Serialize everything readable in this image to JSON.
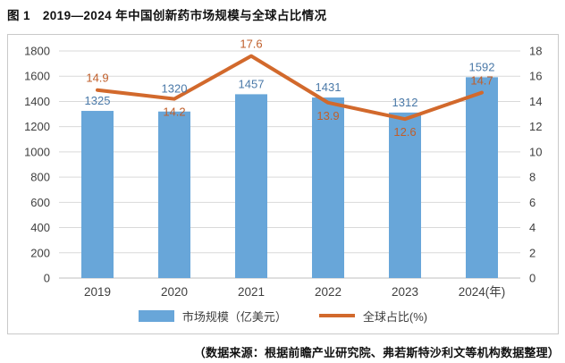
{
  "title": "图 1　2019—2024 年中国创新药市场规模与全球占比情况",
  "source_note": "（数据来源：根据前瞻产业研究院、弗若斯特沙利文等机构数据整理）",
  "legend": {
    "bar_label": "市场规模（亿美元）",
    "line_label": "全球占比(%)"
  },
  "colors": {
    "bar": "#68a6d9",
    "line": "#d2692c",
    "bar_label": "#4a79a8",
    "line_label": "#c05f2b",
    "grid": "#d9d9d9",
    "axis_line": "#bfbfbf",
    "axis_text": "#404040",
    "panel_border": "#c9c9c9"
  },
  "chart_data": {
    "type": "combo",
    "title": "2019—2024 年中国创新药市场规模与全球占比情况",
    "categories": [
      "2019",
      "2020",
      "2021",
      "2022",
      "2023",
      "2024(年)"
    ],
    "series": [
      {
        "name": "市场规模（亿美元）",
        "type": "bar",
        "values": [
          1325,
          1320,
          1457,
          1431,
          1312,
          1592
        ]
      },
      {
        "name": "全球占比(%)",
        "type": "line",
        "values": [
          14.9,
          14.2,
          17.6,
          13.9,
          12.6,
          14.7
        ]
      }
    ],
    "xlabel": "",
    "ylabel_left": "",
    "ylabel_right": "",
    "y_left": {
      "min": 0,
      "max": 1800,
      "step": 200
    },
    "y_right": {
      "min": 0,
      "max": 18,
      "step": 2
    },
    "grid": true,
    "legend_position": "bottom",
    "bar_label_dy": [
      0,
      -14,
      0,
      0,
      0,
      0
    ],
    "line_label_side": [
      "above",
      "below",
      "above",
      "below",
      "below",
      "above"
    ]
  }
}
